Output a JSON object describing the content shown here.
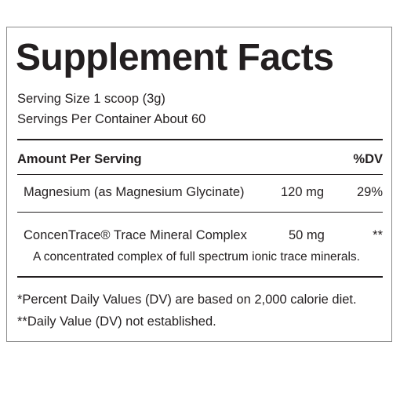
{
  "header": {
    "title": "Supplement Facts",
    "serving_size": "Serving Size 1 scoop (3g)",
    "servings_per_container": "Servings Per Container About 60"
  },
  "table": {
    "columns": [
      "Amount Per Serving",
      "%DV"
    ],
    "rows": [
      {
        "name": "Magnesium (as Magnesium Glycinate)",
        "amount": "120 mg",
        "dv": "29%"
      },
      {
        "name": "ConcenTrace® Trace Mineral Complex",
        "amount": "50 mg",
        "dv": "**",
        "description": "A concentrated complex of full spectrum ionic trace minerals."
      }
    ]
  },
  "footnotes": [
    "*Percent Daily Values (DV) are based on 2,000 calorie diet.",
    "**Daily Value (DV) not established."
  ]
}
